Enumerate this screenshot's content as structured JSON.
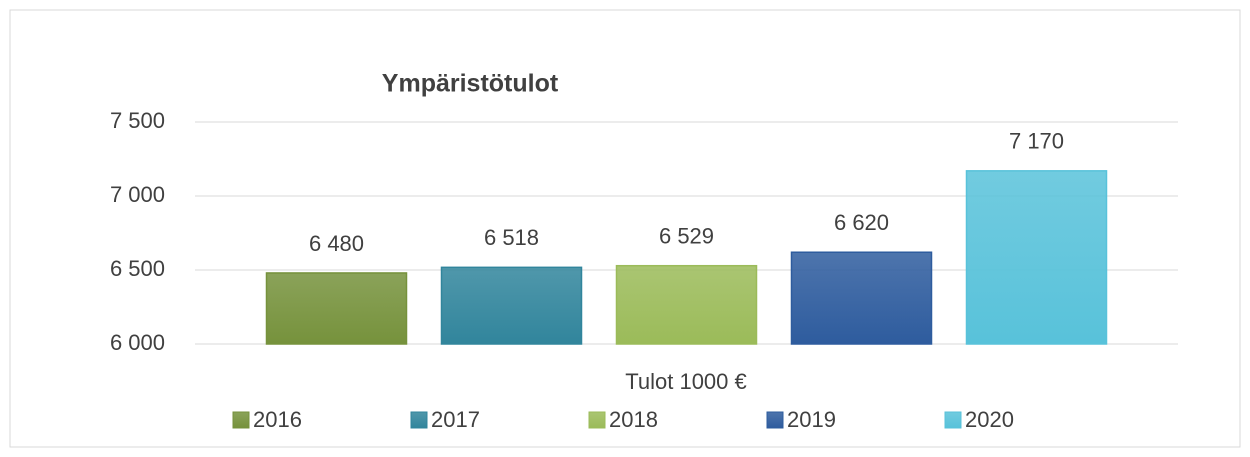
{
  "chart_data": {
    "type": "bar",
    "title": "Ympäristötulot",
    "categories": [
      "Tulot 1000 €"
    ],
    "series": [
      {
        "name": "2016",
        "color": "#76923c",
        "values": [
          6480
        ],
        "value_labels": [
          "6 480"
        ]
      },
      {
        "name": "2017",
        "color": "#31859c",
        "values": [
          6518
        ],
        "value_labels": [
          "6 518"
        ]
      },
      {
        "name": "2018",
        "color": "#9bbb59",
        "values": [
          6529
        ],
        "value_labels": [
          "6 529"
        ]
      },
      {
        "name": "2019",
        "color": "#2e5c9e",
        "values": [
          6620
        ],
        "value_labels": [
          "6 620"
        ]
      },
      {
        "name": "2020",
        "color": "#58c2da",
        "values": [
          7170
        ],
        "value_labels": [
          "7 170"
        ]
      }
    ],
    "ylim": [
      6000,
      7500
    ],
    "yticks": [
      {
        "value": 6000,
        "label": "6 000"
      },
      {
        "value": 6500,
        "label": "6 500"
      },
      {
        "value": 7000,
        "label": "7 000"
      },
      {
        "value": 7500,
        "label": "7 500"
      }
    ],
    "grid": true,
    "legend": "bottom"
  }
}
